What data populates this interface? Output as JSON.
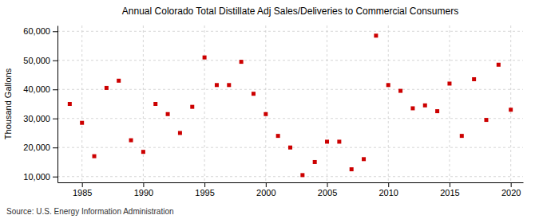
{
  "chart_data": {
    "type": "scatter",
    "title": "Annual Colorado Total Distillate Adj Sales/Deliveries to Commercial Consumers",
    "ylabel": "Thousand Gallons",
    "source": "Source: U.S. Energy Information Administration",
    "color": "#cc0000",
    "marker": "square",
    "grid": true,
    "xlim": [
      1983,
      2021
    ],
    "ylim": [
      8000,
      62000
    ],
    "xticks": [
      1985,
      1990,
      1995,
      2000,
      2005,
      2010,
      2015,
      2020
    ],
    "yticks": [
      {
        "value": 10000,
        "label": "10,000"
      },
      {
        "value": 20000,
        "label": "20,000"
      },
      {
        "value": 30000,
        "label": "30,000"
      },
      {
        "value": 40000,
        "label": "40,000"
      },
      {
        "value": 50000,
        "label": "50,000"
      },
      {
        "value": 60000,
        "label": "60,000"
      }
    ],
    "x": [
      1984,
      1985,
      1986,
      1987,
      1988,
      1989,
      1990,
      1991,
      1992,
      1993,
      1994,
      1995,
      1996,
      1997,
      1998,
      1999,
      2000,
      2001,
      2002,
      2003,
      2004,
      2005,
      2006,
      2007,
      2008,
      2009,
      2010,
      2011,
      2012,
      2013,
      2014,
      2015,
      2016,
      2017,
      2018,
      2019,
      2020
    ],
    "values": [
      35000,
      28500,
      17000,
      40500,
      43000,
      22500,
      18500,
      35000,
      31500,
      25000,
      34000,
      51000,
      41500,
      41500,
      49500,
      38500,
      31500,
      24000,
      20000,
      10500,
      15000,
      22000,
      22000,
      12500,
      16000,
      58500,
      41500,
      39500,
      33500,
      34500,
      32500,
      42000,
      24000,
      43500,
      29500,
      48500,
      33000
    ]
  }
}
